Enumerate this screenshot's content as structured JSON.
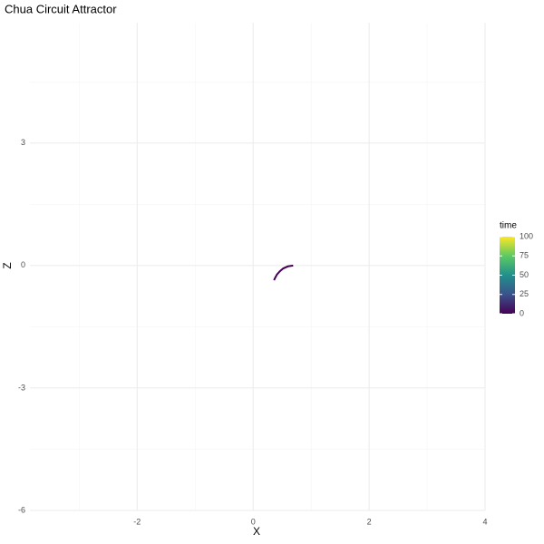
{
  "chart_data": {
    "type": "line",
    "title": "Chua Circuit Attractor",
    "x_label": "X",
    "y_label": "Z",
    "x": [
      0.69,
      0.6,
      0.52,
      0.46,
      0.41,
      0.38,
      0.36
    ],
    "series": [
      {
        "name": "time",
        "values": [
          0,
          -0.02,
          -0.07,
          -0.14,
          -0.22,
          -0.3,
          -0.36
        ],
        "time": [
          0,
          0.2,
          0.4,
          0.6,
          0.8,
          1.0,
          1.2
        ]
      }
    ],
    "xlim": [
      -3.85,
      4.0
    ],
    "xticks": [
      -2,
      0,
      2,
      4
    ],
    "xminor": [
      -3,
      -1,
      1,
      3
    ],
    "ylim": [
      -6,
      5.95
    ],
    "yticks": [
      3,
      0,
      -3,
      -6
    ],
    "yminor": [
      4.5,
      1.5,
      -1.5,
      -4.5
    ],
    "grid": true,
    "colorbar": {
      "title": "time",
      "lim": [
        0,
        100
      ],
      "ticks": [
        100,
        75,
        50,
        25,
        0
      ],
      "colors": [
        "#440154",
        "#3b528b",
        "#21908c",
        "#5dc963",
        "#fde725"
      ]
    }
  }
}
